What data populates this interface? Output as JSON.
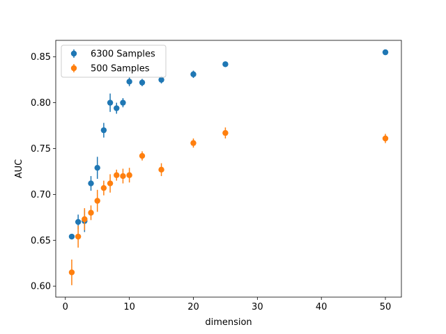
{
  "colors": {
    "series1": "#1f77b4",
    "series2": "#ff7f0e"
  },
  "chart_data": {
    "type": "scatter",
    "title": "",
    "xlabel": "dimension",
    "ylabel": "AUC",
    "xlim": [
      -1.5,
      52.5
    ],
    "ylim": [
      0.588,
      0.868
    ],
    "xticks": [
      0,
      10,
      20,
      30,
      40,
      50
    ],
    "yticks": [
      0.6,
      0.65,
      0.7,
      0.75,
      0.8,
      0.85
    ],
    "xtick_labels": [
      "0",
      "10",
      "20",
      "30",
      "40",
      "50"
    ],
    "ytick_labels": [
      "0.60",
      "0.65",
      "0.70",
      "0.75",
      "0.80",
      "0.85"
    ],
    "grid": false,
    "legend": {
      "placement": "top-left"
    },
    "series": [
      {
        "name": "6300 Samples",
        "color": "#1f77b4",
        "x": [
          1,
          2,
          3,
          4,
          5,
          6,
          7,
          8,
          9,
          10,
          12,
          15,
          20,
          25,
          50
        ],
        "y": [
          0.654,
          0.67,
          0.671,
          0.712,
          0.729,
          0.77,
          0.8,
          0.794,
          0.8,
          0.823,
          0.822,
          0.825,
          0.831,
          0.842,
          0.855
        ],
        "err": [
          0.002,
          0.008,
          0.012,
          0.008,
          0.012,
          0.008,
          0.01,
          0.006,
          0.005,
          0.005,
          0.004,
          0.004,
          0.004,
          0.003,
          0.002
        ]
      },
      {
        "name": "500 Samples",
        "color": "#ff7f0e",
        "x": [
          1,
          2,
          3,
          4,
          5,
          6,
          7,
          8,
          9,
          10,
          12,
          15,
          20,
          25,
          50
        ],
        "y": [
          0.615,
          0.654,
          0.673,
          0.68,
          0.693,
          0.707,
          0.712,
          0.721,
          0.72,
          0.721,
          0.742,
          0.727,
          0.756,
          0.767,
          0.761
        ],
        "err": [
          0.014,
          0.012,
          0.012,
          0.008,
          0.012,
          0.008,
          0.01,
          0.006,
          0.008,
          0.008,
          0.005,
          0.007,
          0.005,
          0.006,
          0.005
        ]
      }
    ]
  }
}
